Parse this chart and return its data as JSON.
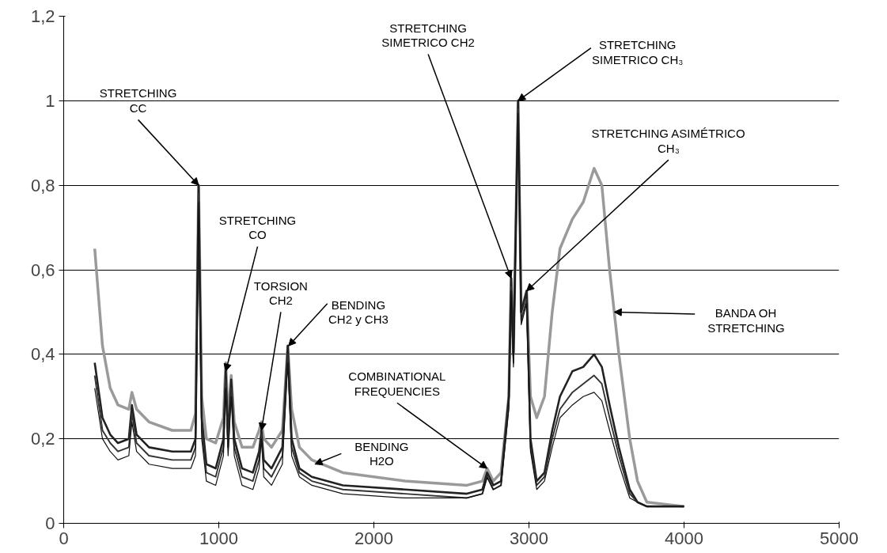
{
  "chart_data": {
    "type": "line",
    "x": [
      200,
      250,
      300,
      350,
      420,
      440,
      470,
      550,
      700,
      820,
      850,
      870,
      890,
      920,
      980,
      1030,
      1045,
      1060,
      1080,
      1100,
      1150,
      1220,
      1260,
      1275,
      1290,
      1340,
      1410,
      1445,
      1470,
      1520,
      1600,
      1800,
      2200,
      2600,
      2700,
      2730,
      2770,
      2820,
      2870,
      2885,
      2900,
      2930,
      2950,
      2985,
      3010,
      3050,
      3100,
      3150,
      3200,
      3280,
      3350,
      3420,
      3470,
      3520,
      3580,
      3650,
      3700,
      3760,
      4000
    ],
    "series": [
      {
        "color": "#9a9a9a",
        "values": [
          0.65,
          0.42,
          0.32,
          0.28,
          0.27,
          0.31,
          0.27,
          0.24,
          0.22,
          0.22,
          0.26,
          0.8,
          0.3,
          0.2,
          0.19,
          0.25,
          0.38,
          0.25,
          0.35,
          0.24,
          0.18,
          0.18,
          0.22,
          0.24,
          0.2,
          0.18,
          0.22,
          0.42,
          0.27,
          0.18,
          0.15,
          0.12,
          0.1,
          0.09,
          0.1,
          0.13,
          0.1,
          0.12,
          0.3,
          0.58,
          0.4,
          1.0,
          0.5,
          0.55,
          0.3,
          0.25,
          0.3,
          0.5,
          0.65,
          0.72,
          0.76,
          0.84,
          0.8,
          0.6,
          0.4,
          0.2,
          0.1,
          0.05,
          0.04
        ]
      },
      {
        "color": "#222222",
        "values": [
          0.38,
          0.25,
          0.21,
          0.19,
          0.2,
          0.28,
          0.21,
          0.18,
          0.17,
          0.17,
          0.2,
          0.8,
          0.25,
          0.14,
          0.13,
          0.2,
          0.36,
          0.2,
          0.34,
          0.2,
          0.13,
          0.12,
          0.17,
          0.22,
          0.15,
          0.13,
          0.18,
          0.42,
          0.2,
          0.13,
          0.11,
          0.09,
          0.08,
          0.07,
          0.08,
          0.12,
          0.09,
          0.1,
          0.3,
          0.58,
          0.4,
          1.0,
          0.5,
          0.55,
          0.2,
          0.1,
          0.12,
          0.22,
          0.3,
          0.36,
          0.37,
          0.4,
          0.37,
          0.28,
          0.18,
          0.08,
          0.05,
          0.04,
          0.04
        ]
      },
      {
        "color": "#333333",
        "values": [
          0.35,
          0.22,
          0.19,
          0.17,
          0.18,
          0.26,
          0.19,
          0.16,
          0.15,
          0.15,
          0.18,
          0.78,
          0.22,
          0.12,
          0.11,
          0.18,
          0.34,
          0.18,
          0.32,
          0.18,
          0.11,
          0.1,
          0.15,
          0.21,
          0.13,
          0.11,
          0.16,
          0.4,
          0.18,
          0.12,
          0.1,
          0.08,
          0.07,
          0.06,
          0.07,
          0.11,
          0.08,
          0.09,
          0.28,
          0.56,
          0.38,
          0.98,
          0.48,
          0.53,
          0.18,
          0.09,
          0.11,
          0.2,
          0.27,
          0.31,
          0.33,
          0.35,
          0.33,
          0.25,
          0.16,
          0.07,
          0.05,
          0.04,
          0.04
        ]
      },
      {
        "color": "#111111",
        "values": [
          0.32,
          0.2,
          0.17,
          0.15,
          0.16,
          0.24,
          0.17,
          0.14,
          0.13,
          0.13,
          0.16,
          0.76,
          0.2,
          0.1,
          0.09,
          0.16,
          0.32,
          0.16,
          0.3,
          0.16,
          0.09,
          0.08,
          0.13,
          0.2,
          0.11,
          0.09,
          0.14,
          0.38,
          0.16,
          0.11,
          0.09,
          0.07,
          0.06,
          0.06,
          0.07,
          0.11,
          0.08,
          0.09,
          0.27,
          0.55,
          0.37,
          0.97,
          0.47,
          0.52,
          0.17,
          0.08,
          0.1,
          0.18,
          0.25,
          0.28,
          0.3,
          0.31,
          0.29,
          0.22,
          0.14,
          0.06,
          0.05,
          0.04,
          0.04
        ]
      }
    ],
    "xlim": [
      0,
      5000
    ],
    "ylim": [
      0,
      1.2
    ],
    "xticks": [
      0,
      1000,
      2000,
      3000,
      4000,
      5000
    ],
    "yticks": [
      0,
      {
        "value": 0.2,
        "label": "0,2"
      },
      {
        "value": 0.4,
        "label": "0,4"
      },
      {
        "value": 0.6,
        "label": "0,6"
      },
      {
        "value": 0.8,
        "label": "0,8"
      },
      1,
      {
        "value": 1.2,
        "label": "1,2"
      }
    ],
    "grid": "y",
    "marker": "none",
    "line_style": "solid",
    "annotations": [
      {
        "text": "STRETCHING\nCC",
        "x": 870,
        "y": 0.8
      },
      {
        "text": "STRETCHING\nCO",
        "x": 1045,
        "y": 0.36
      },
      {
        "text": "TORSION\nCH2",
        "x": 1275,
        "y": 0.22
      },
      {
        "text": "BENDING\nCH2 y CH3",
        "x": 1450,
        "y": 0.42
      },
      {
        "text": "COMBINATIONAL\nFREQUENCIES",
        "x": 2730,
        "y": 0.13
      },
      {
        "text": "BENDING\nH2O",
        "x": 1620,
        "y": 0.14
      },
      {
        "text": "STRETCHING\nSIMETRICO CH2",
        "x": 2885,
        "y": 0.58
      },
      {
        "text": "STRETCHING\nSIMETRICO CH₃",
        "x": 2930,
        "y": 1.0
      },
      {
        "text": "STRETCHING ASIMÉTRICO\nCH₃",
        "x": 2985,
        "y": 0.55
      },
      {
        "text": "BANDA OH\nSTRETCHING",
        "x": 3550,
        "y": 0.5
      }
    ]
  }
}
